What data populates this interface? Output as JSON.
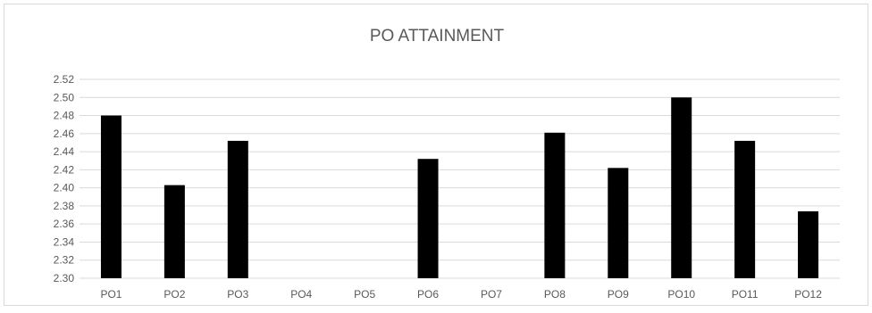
{
  "chart_data": {
    "type": "bar",
    "title": "PO ATTAINMENT",
    "xlabel": "",
    "ylabel": "",
    "categories": [
      "PO1",
      "PO2",
      "PO3",
      "PO4",
      "PO5",
      "PO6",
      "PO7",
      "PO8",
      "PO9",
      "PO10",
      "PO11",
      "PO12"
    ],
    "values": [
      2.48,
      2.403,
      2.452,
      null,
      null,
      2.432,
      null,
      2.461,
      2.422,
      2.5,
      2.452,
      2.374
    ],
    "ylim": [
      2.3,
      2.52
    ],
    "yticks": [
      "2.30",
      "2.32",
      "2.34",
      "2.36",
      "2.38",
      "2.40",
      "2.42",
      "2.44",
      "2.46",
      "2.48",
      "2.50",
      "2.52"
    ],
    "grid": true,
    "legend": "none",
    "bar_color": "#000000",
    "grid_color": "#d9d9d9"
  }
}
